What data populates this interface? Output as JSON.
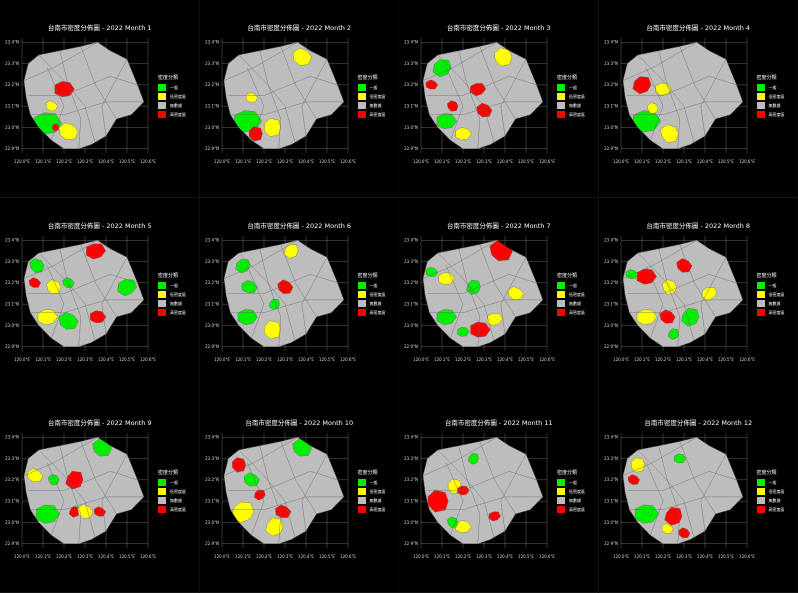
{
  "colors": {
    "background": "#000000",
    "grid": "#7f7f7f",
    "land": "#bdbdbd",
    "border": "#666666",
    "一般": "#00ee00",
    "低密度區": "#ffff00",
    "無數據": "#bdbdbd",
    "高密度區": "#ff0000"
  },
  "chart_data": [
    {
      "type": "map",
      "title": "台南市密度分佈圖 - 2022 Month 1",
      "legend_title": "密度分類",
      "legend": [
        "一般",
        "低密度區",
        "無數據",
        "高密度區"
      ],
      "x_ticks": [
        "120.0°E",
        "120.1°E",
        "120.2°E",
        "120.3°E",
        "120.4°E",
        "120.5°E",
        "120.6°E"
      ],
      "y_ticks": [
        "22.9°N",
        "23.0°N",
        "23.1°N",
        "23.2°N",
        "23.3°N",
        "23.4°N"
      ],
      "regions": [
        {
          "cat": "一般",
          "lon": 120.12,
          "lat": 23.02,
          "size": 0.07
        },
        {
          "cat": "低密度區",
          "lon": 120.22,
          "lat": 22.98,
          "size": 0.05
        },
        {
          "cat": "低密度區",
          "lon": 120.14,
          "lat": 23.1,
          "size": 0.03
        },
        {
          "cat": "高密度區",
          "lon": 120.2,
          "lat": 23.18,
          "size": 0.05
        },
        {
          "cat": "高密度區",
          "lon": 120.16,
          "lat": 23.0,
          "size": 0.02
        }
      ]
    },
    {
      "type": "map",
      "title": "台南市密度分佈圖 - 2022 Month 2",
      "legend_title": "密度分類",
      "legend": [
        "一般",
        "低密度區",
        "無數據",
        "高密度區"
      ],
      "x_ticks": [
        "120.0°E",
        "120.1°E",
        "120.2°E",
        "120.3°E",
        "120.4°E",
        "120.5°E",
        "120.6°E"
      ],
      "y_ticks": [
        "22.9°N",
        "23.0°N",
        "23.1°N",
        "23.2°N",
        "23.3°N",
        "23.4°N"
      ],
      "regions": [
        {
          "cat": "一般",
          "lon": 120.12,
          "lat": 23.03,
          "size": 0.07
        },
        {
          "cat": "低密度區",
          "lon": 120.24,
          "lat": 23.0,
          "size": 0.05
        },
        {
          "cat": "高密度區",
          "lon": 120.16,
          "lat": 22.97,
          "size": 0.04
        },
        {
          "cat": "低密度區",
          "lon": 120.38,
          "lat": 23.33,
          "size": 0.05
        },
        {
          "cat": "低密度區",
          "lon": 120.14,
          "lat": 23.14,
          "size": 0.03
        }
      ]
    },
    {
      "type": "map",
      "title": "台南市密度分佈圖 - 2022 Month 3",
      "legend_title": "密度分類",
      "legend": [
        "一般",
        "低密度區",
        "無數據",
        "高密度區"
      ],
      "x_ticks": [
        "120.0°E",
        "120.1°E",
        "120.2°E",
        "120.3°E",
        "120.4°E",
        "120.5°E",
        "120.6°E"
      ],
      "y_ticks": [
        "22.9°N",
        "23.0°N",
        "23.1°N",
        "23.2°N",
        "23.3°N",
        "23.4°N"
      ],
      "regions": [
        {
          "cat": "一般",
          "lon": 120.1,
          "lat": 23.28,
          "size": 0.05
        },
        {
          "cat": "高密度區",
          "lon": 120.05,
          "lat": 23.2,
          "size": 0.03
        },
        {
          "cat": "高密度區",
          "lon": 120.27,
          "lat": 23.18,
          "size": 0.04
        },
        {
          "cat": "高密度區",
          "lon": 120.3,
          "lat": 23.08,
          "size": 0.04
        },
        {
          "cat": "一般",
          "lon": 120.12,
          "lat": 23.03,
          "size": 0.05
        },
        {
          "cat": "低密度區",
          "lon": 120.2,
          "lat": 22.97,
          "size": 0.04
        },
        {
          "cat": "高密度區",
          "lon": 120.15,
          "lat": 23.1,
          "size": 0.03
        },
        {
          "cat": "低密度區",
          "lon": 120.39,
          "lat": 23.33,
          "size": 0.05
        }
      ]
    },
    {
      "type": "map",
      "title": "台南市密度分佈圖 - 2022 Month 4",
      "legend_title": "密度分類",
      "legend": [
        "一般",
        "低密度區",
        "無數據",
        "高密度區"
      ],
      "x_ticks": [
        "120.0°E",
        "120.1°E",
        "120.2°E",
        "120.3°E",
        "120.4°E",
        "120.5°E",
        "120.6°E"
      ],
      "y_ticks": [
        "22.9°N",
        "23.0°N",
        "23.1°N",
        "23.2°N",
        "23.3°N",
        "23.4°N"
      ],
      "regions": [
        {
          "cat": "一般",
          "lon": 120.12,
          "lat": 23.03,
          "size": 0.07
        },
        {
          "cat": "低密度區",
          "lon": 120.23,
          "lat": 22.97,
          "size": 0.05
        },
        {
          "cat": "高密度區",
          "lon": 120.1,
          "lat": 23.2,
          "size": 0.05
        },
        {
          "cat": "低密度區",
          "lon": 120.2,
          "lat": 23.18,
          "size": 0.04
        },
        {
          "cat": "低密度區",
          "lon": 120.15,
          "lat": 23.09,
          "size": 0.03
        }
      ]
    },
    {
      "type": "map",
      "title": "台南市密度分佈圖 - 2022 Month 5",
      "legend_title": "密度分類",
      "legend": [
        "一般",
        "低密度區",
        "無數據",
        "高密度區"
      ],
      "x_ticks": [
        "120.0°E",
        "120.1°E",
        "120.2°E",
        "120.3°E",
        "120.4°E",
        "120.5°E",
        "120.6°E"
      ],
      "y_ticks": [
        "22.9°N",
        "23.0°N",
        "23.1°N",
        "23.2°N",
        "23.3°N",
        "23.4°N"
      ],
      "regions": [
        {
          "cat": "一般",
          "lon": 120.07,
          "lat": 23.28,
          "size": 0.04
        },
        {
          "cat": "高密度區",
          "lon": 120.06,
          "lat": 23.2,
          "size": 0.03
        },
        {
          "cat": "高密度區",
          "lon": 120.35,
          "lat": 23.35,
          "size": 0.05
        },
        {
          "cat": "一般",
          "lon": 120.5,
          "lat": 23.18,
          "size": 0.05
        },
        {
          "cat": "低密度區",
          "lon": 120.15,
          "lat": 23.18,
          "size": 0.04
        },
        {
          "cat": "低密度區",
          "lon": 120.12,
          "lat": 23.04,
          "size": 0.05
        },
        {
          "cat": "一般",
          "lon": 120.22,
          "lat": 23.02,
          "size": 0.05
        },
        {
          "cat": "高密度區",
          "lon": 120.36,
          "lat": 23.04,
          "size": 0.04
        },
        {
          "cat": "一般",
          "lon": 120.22,
          "lat": 23.2,
          "size": 0.03
        }
      ]
    },
    {
      "type": "map",
      "title": "台南市密度分佈圖 - 2022 Month 6",
      "legend_title": "密度分類",
      "legend": [
        "一般",
        "低密度區",
        "無數據",
        "高密度區"
      ],
      "x_ticks": [
        "120.0°E",
        "120.1°E",
        "120.2°E",
        "120.3°E",
        "120.4°E",
        "120.5°E",
        "120.6°E"
      ],
      "y_ticks": [
        "22.9°N",
        "23.0°N",
        "23.1°N",
        "23.2°N",
        "23.3°N",
        "23.4°N"
      ],
      "regions": [
        {
          "cat": "一般",
          "lon": 120.1,
          "lat": 23.28,
          "size": 0.04
        },
        {
          "cat": "一般",
          "lon": 120.13,
          "lat": 23.18,
          "size": 0.04
        },
        {
          "cat": "一般",
          "lon": 120.12,
          "lat": 23.04,
          "size": 0.05
        },
        {
          "cat": "低密度區",
          "lon": 120.24,
          "lat": 22.98,
          "size": 0.05
        },
        {
          "cat": "高密度區",
          "lon": 120.3,
          "lat": 23.18,
          "size": 0.04
        },
        {
          "cat": "低密度區",
          "lon": 120.33,
          "lat": 23.35,
          "size": 0.04
        },
        {
          "cat": "一般",
          "lon": 120.25,
          "lat": 23.1,
          "size": 0.03
        }
      ]
    },
    {
      "type": "map",
      "title": "台南市密度分佈圖 - 2022 Month 7",
      "legend_title": "密度分類",
      "legend": [
        "一般",
        "低密度區",
        "無數據",
        "高密度區"
      ],
      "x_ticks": [
        "120.0°E",
        "120.1°E",
        "120.2°E",
        "120.3°E",
        "120.4°E",
        "120.5°E",
        "120.6°E"
      ],
      "y_ticks": [
        "22.9°N",
        "23.0°N",
        "23.1°N",
        "23.2°N",
        "23.3°N",
        "23.4°N"
      ],
      "regions": [
        {
          "cat": "高密度區",
          "lon": 120.38,
          "lat": 23.35,
          "size": 0.06
        },
        {
          "cat": "一般",
          "lon": 120.05,
          "lat": 23.25,
          "size": 0.03
        },
        {
          "cat": "低密度區",
          "lon": 120.12,
          "lat": 23.22,
          "size": 0.04
        },
        {
          "cat": "一般",
          "lon": 120.25,
          "lat": 23.18,
          "size": 0.04
        },
        {
          "cat": "低密度區",
          "lon": 120.45,
          "lat": 23.15,
          "size": 0.04
        },
        {
          "cat": "一般",
          "lon": 120.12,
          "lat": 23.04,
          "size": 0.05
        },
        {
          "cat": "高密度區",
          "lon": 120.28,
          "lat": 22.98,
          "size": 0.05
        },
        {
          "cat": "低密度區",
          "lon": 120.35,
          "lat": 23.03,
          "size": 0.04
        },
        {
          "cat": "一般",
          "lon": 120.2,
          "lat": 22.97,
          "size": 0.03
        }
      ]
    },
    {
      "type": "map",
      "title": "台南市密度分佈圖 - 2022 Month 8",
      "legend_title": "密度分類",
      "legend": [
        "一般",
        "低密度區",
        "無數據",
        "高密度區"
      ],
      "x_ticks": [
        "120.0°E",
        "120.1°E",
        "120.2°E",
        "120.3°E",
        "120.4°E",
        "120.5°E",
        "120.6°E"
      ],
      "y_ticks": [
        "22.9°N",
        "23.0°N",
        "23.1°N",
        "23.2°N",
        "23.3°N",
        "23.4°N"
      ],
      "regions": [
        {
          "cat": "高密度區",
          "lon": 120.12,
          "lat": 23.23,
          "size": 0.05
        },
        {
          "cat": "高密度區",
          "lon": 120.3,
          "lat": 23.28,
          "size": 0.04
        },
        {
          "cat": "一般",
          "lon": 120.05,
          "lat": 23.24,
          "size": 0.03
        },
        {
          "cat": "低密度區",
          "lon": 120.23,
          "lat": 23.18,
          "size": 0.04
        },
        {
          "cat": "低密度區",
          "lon": 120.42,
          "lat": 23.15,
          "size": 0.04
        },
        {
          "cat": "低密度區",
          "lon": 120.12,
          "lat": 23.04,
          "size": 0.05
        },
        {
          "cat": "高密度區",
          "lon": 120.22,
          "lat": 23.04,
          "size": 0.04
        },
        {
          "cat": "一般",
          "lon": 120.33,
          "lat": 23.04,
          "size": 0.05
        },
        {
          "cat": "一般",
          "lon": 120.25,
          "lat": 22.96,
          "size": 0.03
        }
      ]
    },
    {
      "type": "map",
      "title": "台南市密度分佈圖 - 2022 Month 9",
      "legend_title": "密度分類",
      "legend": [
        "一般",
        "低密度區",
        "無數據",
        "高密度區"
      ],
      "x_ticks": [
        "120.0°E",
        "120.1°E",
        "120.2°E",
        "120.3°E",
        "120.4°E",
        "120.5°E",
        "120.6°E"
      ],
      "y_ticks": [
        "22.9°N",
        "23.0°N",
        "23.1°N",
        "23.2°N",
        "23.3°N",
        "23.4°N"
      ],
      "regions": [
        {
          "cat": "一般",
          "lon": 120.38,
          "lat": 23.35,
          "size": 0.05
        },
        {
          "cat": "低密度區",
          "lon": 120.06,
          "lat": 23.22,
          "size": 0.04
        },
        {
          "cat": "高密度區",
          "lon": 120.25,
          "lat": 23.2,
          "size": 0.05
        },
        {
          "cat": "一般",
          "lon": 120.15,
          "lat": 23.2,
          "size": 0.03
        },
        {
          "cat": "一般",
          "lon": 120.12,
          "lat": 23.04,
          "size": 0.06
        },
        {
          "cat": "高密度區",
          "lon": 120.25,
          "lat": 23.05,
          "size": 0.03
        },
        {
          "cat": "低密度區",
          "lon": 120.3,
          "lat": 23.05,
          "size": 0.04
        },
        {
          "cat": "高密度區",
          "lon": 120.37,
          "lat": 23.05,
          "size": 0.03
        }
      ]
    },
    {
      "type": "map",
      "title": "台南市密度分佈圖 - 2022 Month 10",
      "legend_title": "密度分類",
      "legend": [
        "一般",
        "低密度區",
        "無數據",
        "高密度區"
      ],
      "x_ticks": [
        "120.0°E",
        "120.1°E",
        "120.2°E",
        "120.3°E",
        "120.4°E",
        "120.5°E",
        "120.6°E"
      ],
      "y_ticks": [
        "22.9°N",
        "23.0°N",
        "23.1°N",
        "23.2°N",
        "23.3°N",
        "23.4°N"
      ],
      "regions": [
        {
          "cat": "高密度區",
          "lon": 120.08,
          "lat": 23.27,
          "size": 0.04
        },
        {
          "cat": "一般",
          "lon": 120.38,
          "lat": 23.35,
          "size": 0.05
        },
        {
          "cat": "一般",
          "lon": 120.14,
          "lat": 23.2,
          "size": 0.04
        },
        {
          "cat": "低密度區",
          "lon": 120.1,
          "lat": 23.05,
          "size": 0.06
        },
        {
          "cat": "高密度區",
          "lon": 120.18,
          "lat": 23.13,
          "size": 0.03
        },
        {
          "cat": "低密度區",
          "lon": 120.25,
          "lat": 22.98,
          "size": 0.05
        },
        {
          "cat": "高密度區",
          "lon": 120.29,
          "lat": 23.05,
          "size": 0.04
        }
      ]
    },
    {
      "type": "map",
      "title": "台南市密度分佈圖 - 2022 Month 11",
      "legend_title": "密度分類",
      "legend": [
        "一般",
        "低密度區",
        "無數據",
        "高密度區"
      ],
      "x_ticks": [
        "120.0°E",
        "120.1°E",
        "120.2°E",
        "120.3°E",
        "120.4°E",
        "120.5°E",
        "120.6°E"
      ],
      "y_ticks": [
        "22.9°N",
        "23.0°N",
        "23.1°N",
        "23.2°N",
        "23.3°N",
        "23.4°N"
      ],
      "regions": [
        {
          "cat": "高密度區",
          "lon": 120.08,
          "lat": 23.1,
          "size": 0.06
        },
        {
          "cat": "低密度區",
          "lon": 120.16,
          "lat": 23.17,
          "size": 0.04
        },
        {
          "cat": "一般",
          "lon": 120.25,
          "lat": 23.3,
          "size": 0.03
        },
        {
          "cat": "高密度區",
          "lon": 120.2,
          "lat": 23.15,
          "size": 0.03
        },
        {
          "cat": "低密度區",
          "lon": 120.2,
          "lat": 22.98,
          "size": 0.04
        },
        {
          "cat": "一般",
          "lon": 120.15,
          "lat": 23.0,
          "size": 0.03
        },
        {
          "cat": "高密度區",
          "lon": 120.35,
          "lat": 23.03,
          "size": 0.03
        }
      ]
    },
    {
      "type": "map",
      "title": "台南市密度分佈圖 - 2022 Month 12",
      "legend_title": "密度分類",
      "legend": [
        "一般",
        "低密度區",
        "無數據",
        "高密度區"
      ],
      "x_ticks": [
        "120.0°E",
        "120.1°E",
        "120.2°E",
        "120.3°E",
        "120.4°E",
        "120.5°E",
        "120.6°E"
      ],
      "y_ticks": [
        "22.9°N",
        "23.0°N",
        "23.1°N",
        "23.2°N",
        "23.3°N",
        "23.4°N"
      ],
      "regions": [
        {
          "cat": "低密度區",
          "lon": 120.08,
          "lat": 23.27,
          "size": 0.04
        },
        {
          "cat": "高密度區",
          "lon": 120.06,
          "lat": 23.2,
          "size": 0.03
        },
        {
          "cat": "一般",
          "lon": 120.28,
          "lat": 23.3,
          "size": 0.03
        },
        {
          "cat": "一般",
          "lon": 120.12,
          "lat": 23.04,
          "size": 0.06
        },
        {
          "cat": "高密度區",
          "lon": 120.25,
          "lat": 23.03,
          "size": 0.05
        },
        {
          "cat": "低密度區",
          "lon": 120.22,
          "lat": 22.97,
          "size": 0.03
        },
        {
          "cat": "高密度區",
          "lon": 120.3,
          "lat": 22.95,
          "size": 0.03
        }
      ]
    }
  ]
}
